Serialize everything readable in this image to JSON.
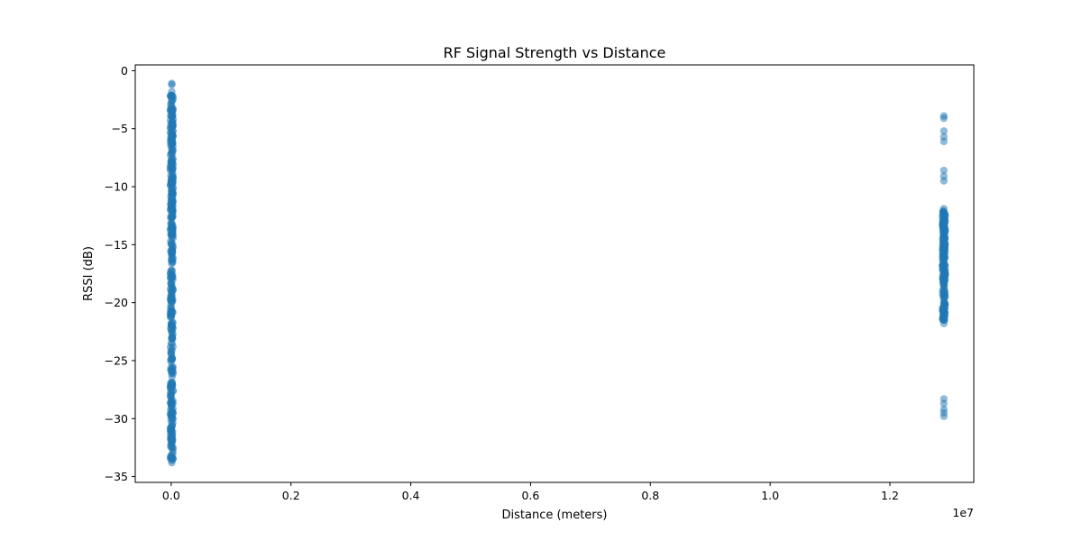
{
  "chart_data": {
    "type": "scatter",
    "title": "RF Signal Strength vs Distance",
    "xlabel": "Distance (meters)",
    "ylabel": "RSSI (dB)",
    "x_offset_label": "1e7",
    "xlim": [
      -600000,
      13400000
    ],
    "ylim": [
      -35.5,
      0.5
    ],
    "x_ticks": [
      0,
      2000000,
      4000000,
      6000000,
      8000000,
      10000000,
      12000000
    ],
    "x_tick_labels": [
      "0.0",
      "0.2",
      "0.4",
      "0.6",
      "0.8",
      "1.0",
      "1.2"
    ],
    "y_ticks": [
      0,
      -5,
      -10,
      -15,
      -20,
      -25,
      -30,
      -35
    ],
    "y_tick_labels": [
      "0",
      "−5",
      "−10",
      "−15",
      "−20",
      "−25",
      "−30",
      "−35"
    ],
    "grid": false,
    "legend": "none",
    "marker_color": "#1f77b4",
    "marker_alpha": 0.5,
    "clusters": [
      {
        "x": 10000,
        "y_dense_range": [
          -33.5,
          -2.0
        ],
        "outlier_y": [
          -1.1,
          -1.2,
          -1.8,
          -2.2,
          -33.8,
          -33.6
        ]
      },
      {
        "x": 12900000,
        "y_dense_range": [
          -21.5,
          -12.0
        ],
        "outlier_y": [
          -3.9,
          -4.1,
          -5.2,
          -5.7,
          -6.1,
          -8.6,
          -9.1,
          -9.5,
          -11.9,
          -12.4,
          -28.3,
          -28.7,
          -29.2,
          -29.5,
          -29.8,
          -21.8
        ]
      }
    ]
  }
}
